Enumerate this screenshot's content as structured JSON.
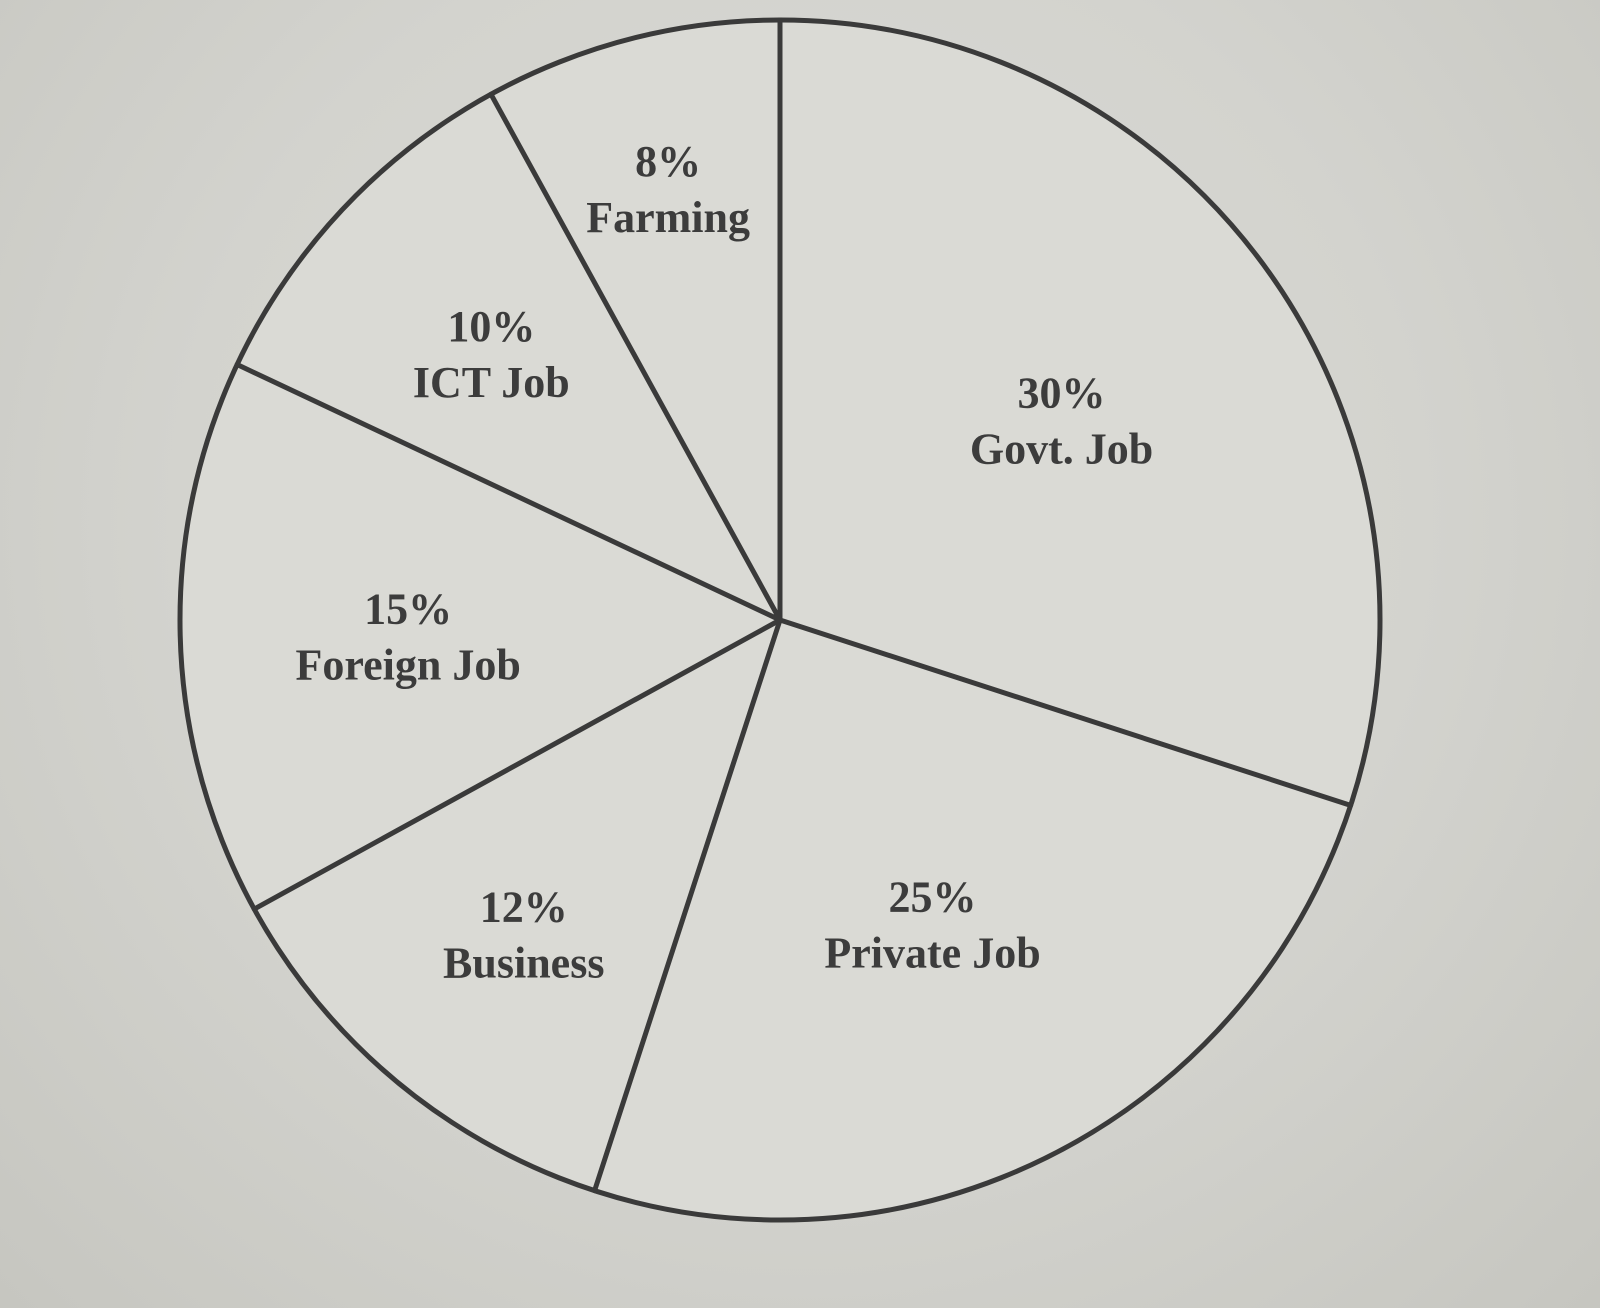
{
  "chart_data": {
    "type": "pie",
    "title": "",
    "legend": "none",
    "slices": [
      {
        "label": "Govt. Job",
        "value": 30,
        "value_label": "30%"
      },
      {
        "label": "Private Job",
        "value": 25,
        "value_label": "25%"
      },
      {
        "label": "Business",
        "value": 12,
        "value_label": "12%"
      },
      {
        "label": "Foreign Job",
        "value": 15,
        "value_label": "15%"
      },
      {
        "label": "ICT Job",
        "value": 10,
        "value_label": "10%"
      },
      {
        "label": "Farming",
        "value": 8,
        "value_label": "8%"
      }
    ],
    "colors": {
      "line": "#3a3a3a",
      "text": "#3c3c3c",
      "fill": "#dadad5"
    }
  }
}
